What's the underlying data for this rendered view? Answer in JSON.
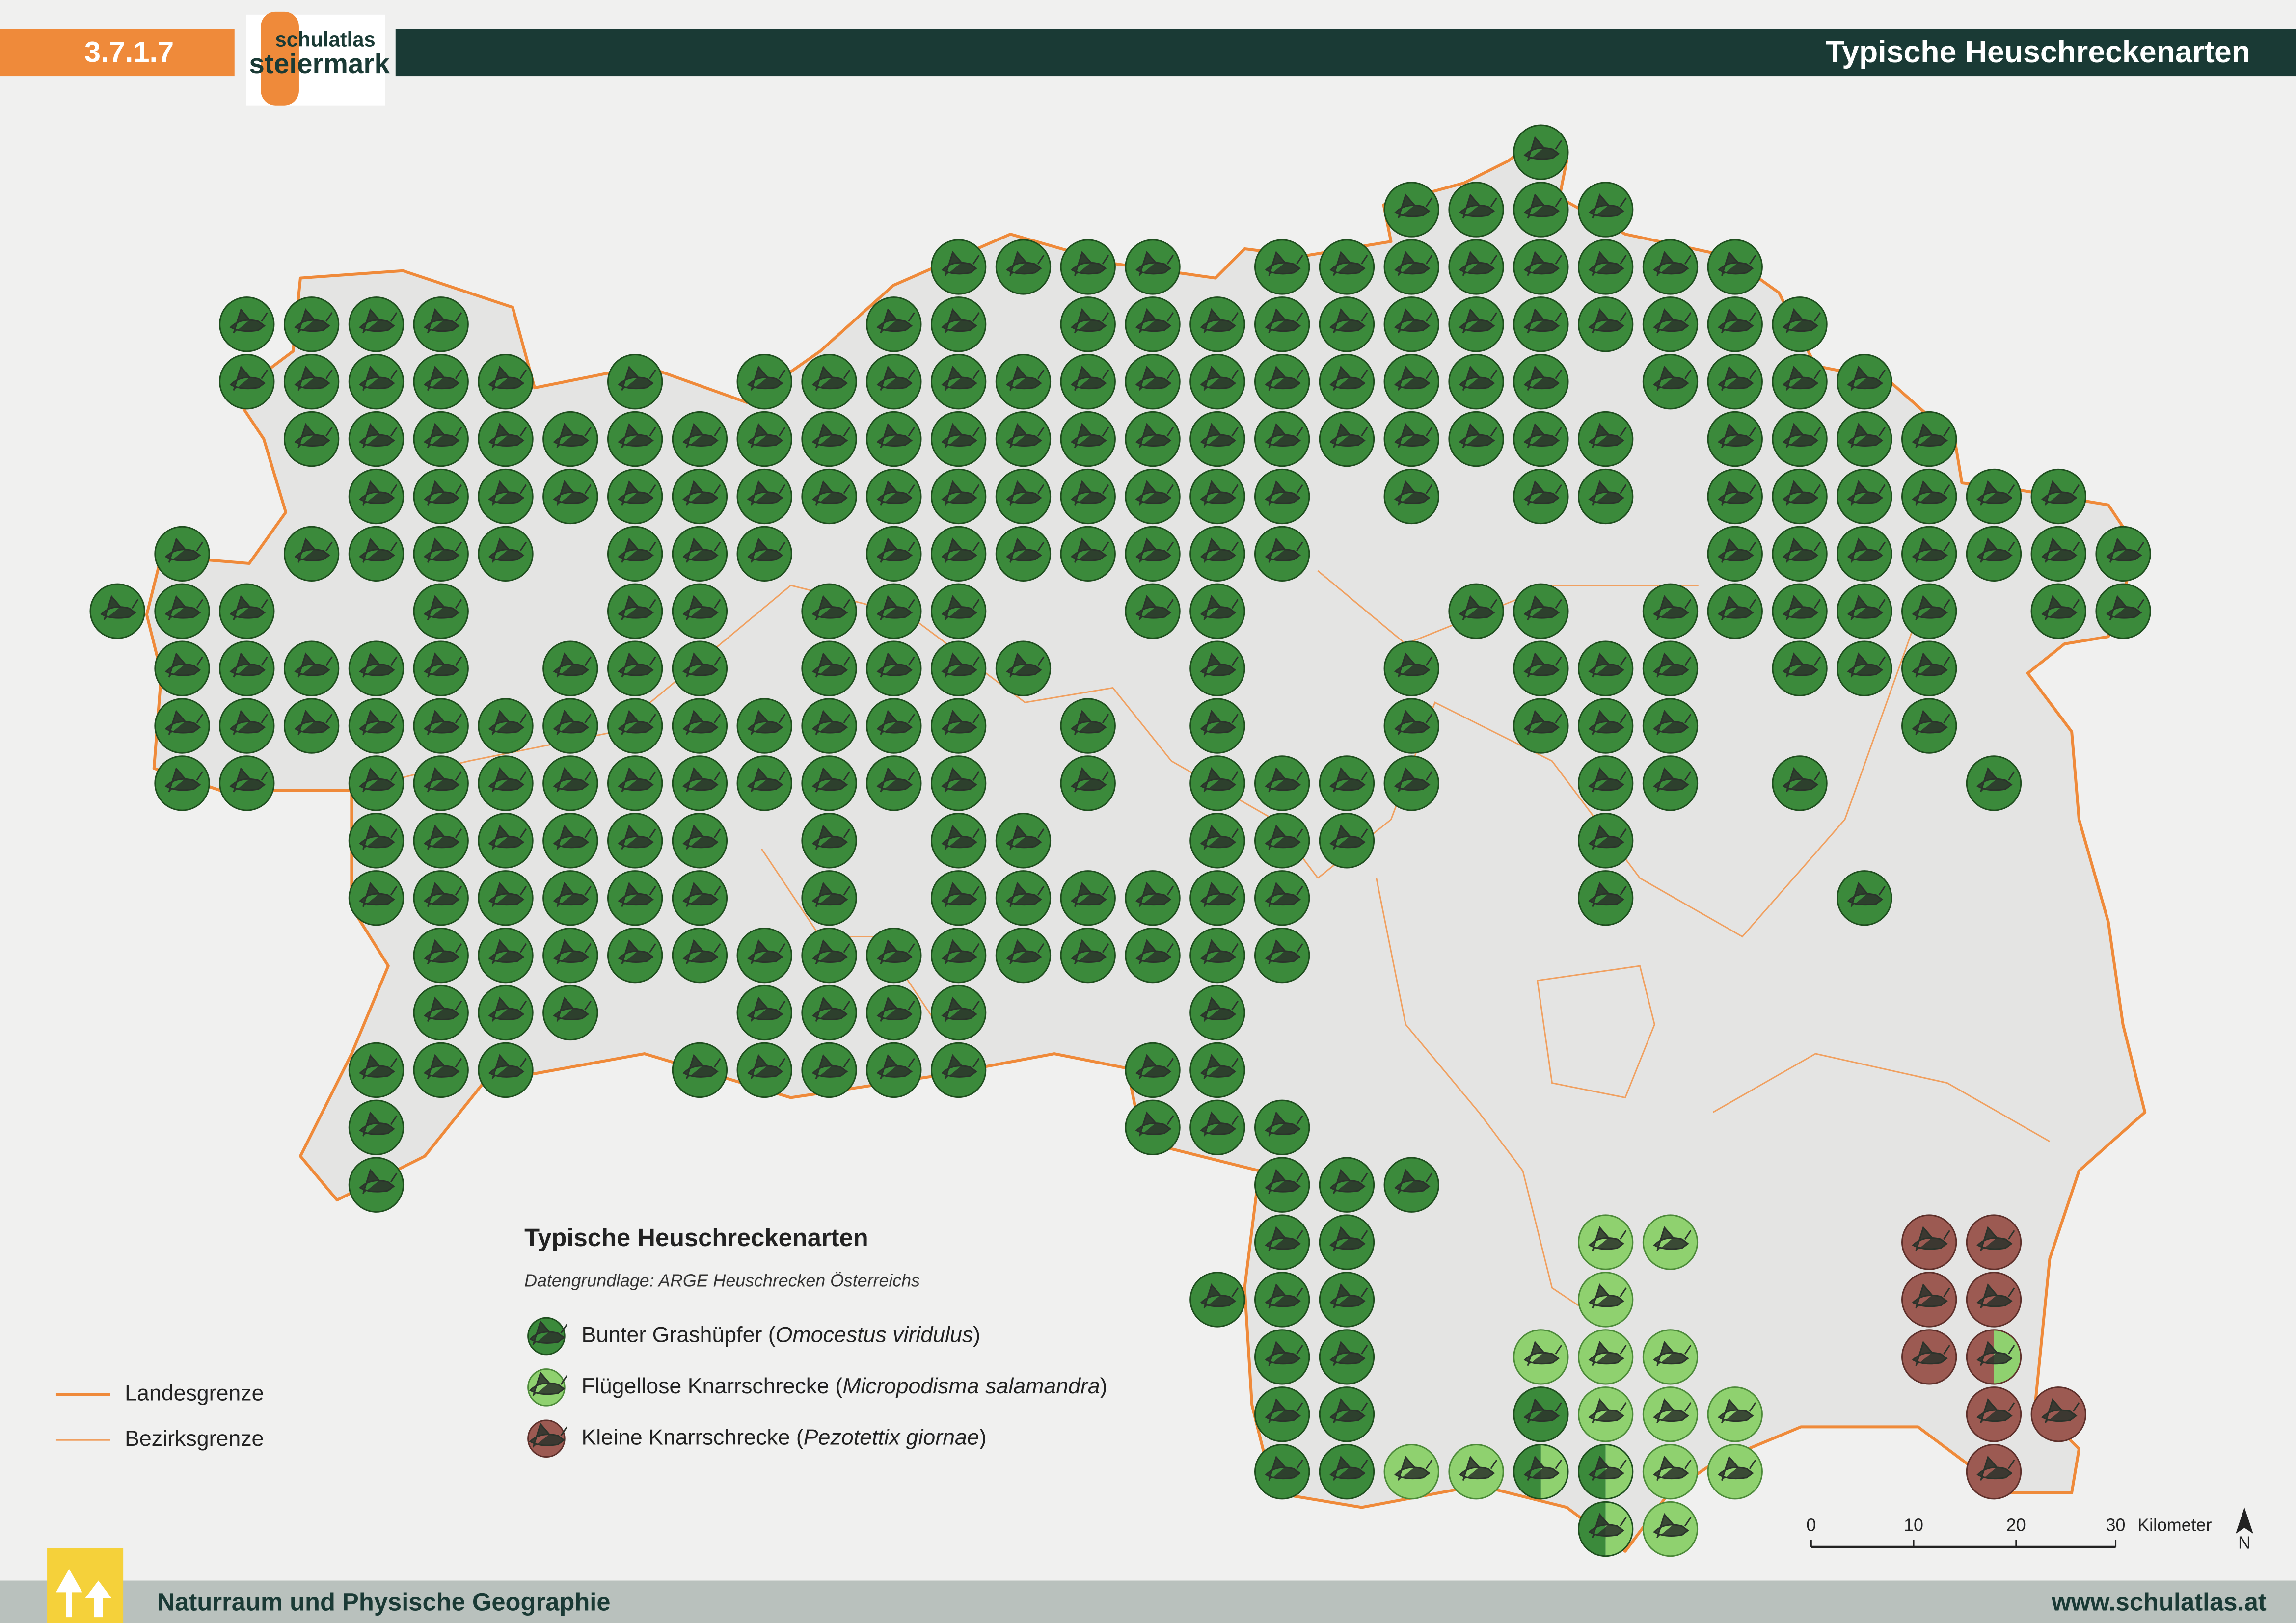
{
  "header": {
    "section": "3.7.1.7",
    "logo_top": "schulatlas",
    "logo_bottom": "steiermark",
    "title": "Typische Heuschreckenarten"
  },
  "legend": {
    "title": "Typische Heuschreckenarten",
    "source": "Datengrundlage: ARGE Heuschrecken Österreichs",
    "species": [
      {
        "label_parts": [
          "Bunter Grashüpfer (",
          "Omocestus viridulus",
          ")"
        ],
        "color": "#3b8a3b"
      },
      {
        "label_parts": [
          "Flügellose Knarrschrecke (",
          "Micropodisma salamandra",
          ")"
        ],
        "color": "#8fd16f"
      },
      {
        "label_parts": [
          "Kleine Knarrschrecke (",
          "Pezotettix giornae",
          ")"
        ],
        "color": "#9c5a52"
      }
    ],
    "boundaries": [
      "Landesgrenze",
      "Bezirksgrenze"
    ]
  },
  "scale": {
    "ticks": [
      "0",
      "10",
      "20",
      "30"
    ],
    "unit": "Kilometer"
  },
  "north": "N",
  "footer": {
    "left": "Naturraum und Physische Geographie",
    "right": "www.schulatlas.at"
  }
}
